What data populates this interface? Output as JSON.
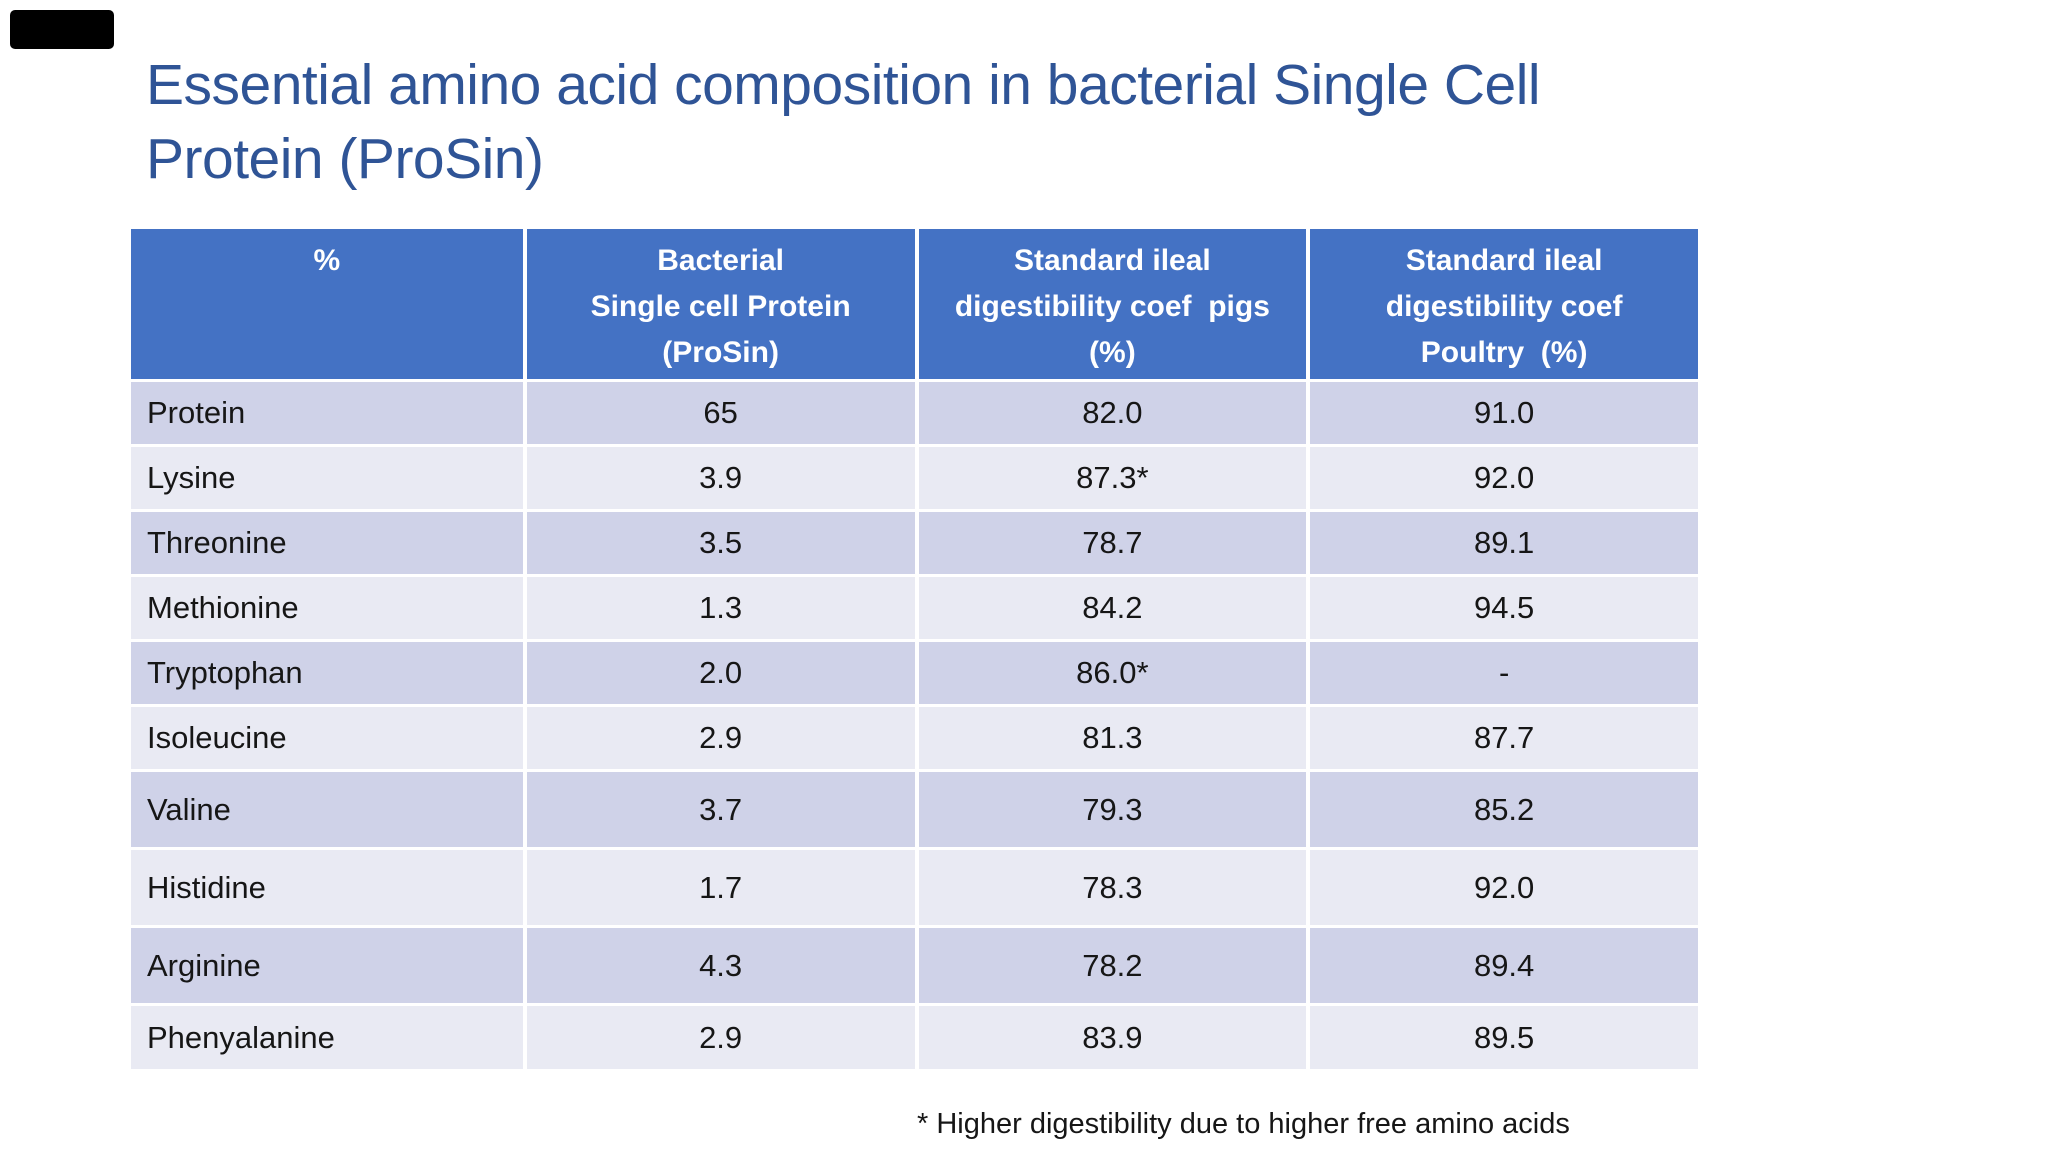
{
  "slide": {
    "title": "Essential amino acid composition in bacterial Single Cell\nProtein (ProSin)",
    "footnote": "* Higher digestibility due to higher free amino acids"
  },
  "colors": {
    "slide_bg": "#FFFFFF",
    "title_text": "#2F5496",
    "header_bg": "#4472C4",
    "header_text": "#FFFFFF",
    "row_dark": "#CFD2E8",
    "row_light": "#E9EAF3",
    "body_text": "#161616",
    "marker": "#000000",
    "grid_line": "#FFFFFF"
  },
  "table": {
    "columns": [
      "%",
      "Bacterial\nSingle cell Protein\n(ProSin)",
      "Standard ileal\ndigestibility coef  pigs\n(%)",
      "Standard ileal\ndigestibility coef\nPoultry  (%)"
    ],
    "rows": [
      {
        "name": "Protein",
        "scp": "65",
        "pigs": "82.0",
        "poultry": "91.0"
      },
      {
        "name": "Lysine",
        "scp": "3.9",
        "pigs": "87.3*",
        "poultry": "92.0"
      },
      {
        "name": "Threonine",
        "scp": "3.5",
        "pigs": "78.7",
        "poultry": "89.1"
      },
      {
        "name": "Methionine",
        "scp": "1.3",
        "pigs": "84.2",
        "poultry": "94.5"
      },
      {
        "name": "Tryptophan",
        "scp": "2.0",
        "pigs": "86.0*",
        "poultry": "-"
      },
      {
        "name": "Isoleucine",
        "scp": "2.9",
        "pigs": "81.3",
        "poultry": "87.7"
      },
      {
        "name": "Valine",
        "scp": "3.7",
        "pigs": "79.3",
        "poultry": "85.2"
      },
      {
        "name": "Histidine",
        "scp": "1.7",
        "pigs": "78.3",
        "poultry": "92.0"
      },
      {
        "name": "Arginine",
        "scp": "4.3",
        "pigs": "78.2",
        "poultry": "89.4"
      },
      {
        "name": "Phenyalanine",
        "scp": "2.9",
        "pigs": "83.9",
        "poultry": "89.5"
      }
    ]
  }
}
